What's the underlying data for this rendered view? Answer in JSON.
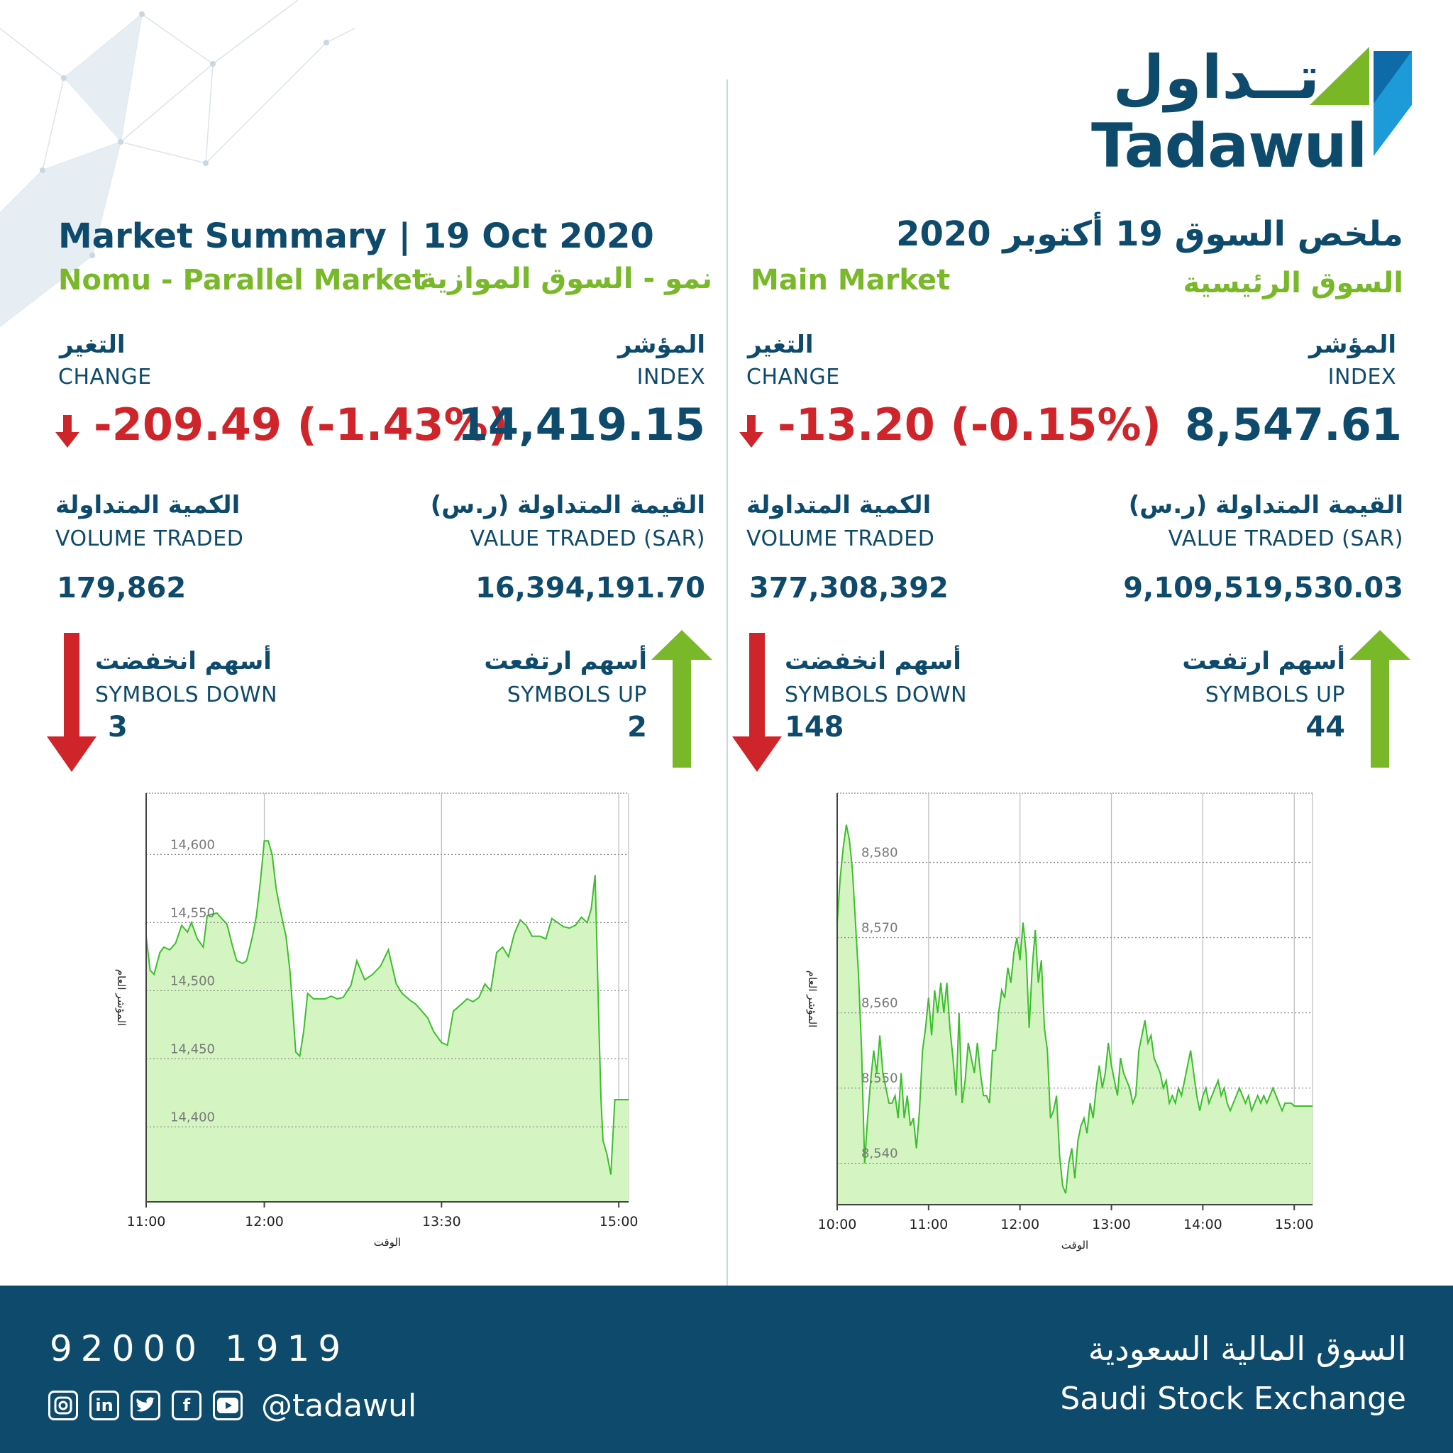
{
  "logo": {
    "arabic": "تــداول",
    "english": "Tadawul"
  },
  "nomu": {
    "title": "Market Summary | 19 Oct 2020",
    "market_en": "Nomu - Parallel Market",
    "market_ar": "نمو - السوق الموازية",
    "index": {
      "label_ar": "المؤشر",
      "label_en": "INDEX",
      "value": "14,419.15"
    },
    "change": {
      "label_ar": "التغير",
      "label_en": "CHANGE",
      "value": "-209.49 (-1.43%)"
    },
    "value_traded": {
      "label_ar": "القيمة المتداولة (ر.س)",
      "label_en": "VALUE TRADED (SAR)",
      "value": "16,394,191.70"
    },
    "volume_traded": {
      "label_ar": "الكمية المتداولة",
      "label_en": "VOLUME TRADED",
      "value": "179,862"
    },
    "symbols_up": {
      "label_ar": "أسهم ارتفعت",
      "label_en": "SYMBOLS UP",
      "value": "2"
    },
    "symbols_down": {
      "label_ar": "أسهم انخفضت",
      "label_en": "SYMBOLS DOWN",
      "value": "3"
    }
  },
  "main": {
    "title": "ملخص السوق 19 أكتوبر 2020",
    "market_en": "Main Market",
    "market_ar": "السوق الرئيسية",
    "index": {
      "label_ar": "المؤشر",
      "label_en": "INDEX",
      "value": "8,547.61"
    },
    "change": {
      "label_ar": "التغير",
      "label_en": "CHANGE",
      "value": "-13.20 (-0.15%)"
    },
    "value_traded": {
      "label_ar": "القيمة المتداولة (ر.س)",
      "label_en": "VALUE TRADED (SAR)",
      "value": "9,109,519,530.03"
    },
    "volume_traded": {
      "label_ar": "الكمية المتداولة",
      "label_en": "VOLUME TRADED",
      "value": "377,308,392"
    },
    "symbols_up": {
      "label_ar": "أسهم ارتفعت",
      "label_en": "SYMBOLS UP",
      "value": "44"
    },
    "symbols_down": {
      "label_ar": "أسهم انخفضت",
      "label_en": "SYMBOLS DOWN",
      "value": "148"
    }
  },
  "footer": {
    "phone": "92000 1919",
    "handle": "@tadawul",
    "exchange_ar": "السوق المالية السعودية",
    "exchange_en": "Saudi Stock Exchange",
    "social_icons": [
      "instagram-icon",
      "linkedin-icon",
      "twitter-icon",
      "facebook-icon",
      "youtube-icon"
    ]
  },
  "colors": {
    "navy": "#0d4a6b",
    "green": "#78b829",
    "red": "#d0242b",
    "chart_fill": "#d4f5c2",
    "chart_line": "#3bbf2b"
  },
  "chart_data": [
    {
      "type": "area",
      "market": "Nomu - Parallel Market",
      "xlabel": "الوقت",
      "ylabel": "المؤشر العام",
      "x_ticks": [
        "11:00",
        "12:00",
        "13:30",
        "15:00"
      ],
      "x_tick_minutes": [
        660,
        720,
        810,
        900
      ],
      "xlim_minutes": [
        660,
        905
      ],
      "y_ticks": [
        "14,400",
        "14,450",
        "14,500",
        "14,550",
        "14,600"
      ],
      "y_tick_values": [
        14400,
        14450,
        14500,
        14550,
        14600
      ],
      "ylim": [
        14345,
        14645
      ],
      "x_minutes": [
        660,
        662,
        664,
        667,
        669,
        672,
        675,
        678,
        681,
        683,
        686,
        689,
        691,
        693,
        696,
        699,
        701,
        704,
        706,
        709,
        711,
        714,
        716,
        718,
        720,
        722,
        724,
        726,
        728,
        731,
        733,
        736,
        738,
        740,
        742,
        745,
        748,
        751,
        754,
        757,
        760,
        764,
        767,
        771,
        775,
        779,
        783,
        787,
        790,
        794,
        797,
        800,
        803,
        806,
        810,
        813,
        816,
        820,
        823,
        826,
        829,
        832,
        835,
        838,
        841,
        844,
        847,
        850,
        853,
        856,
        860,
        863,
        866,
        869,
        872,
        875,
        878,
        881,
        884,
        886,
        888,
        890,
        891,
        892,
        894,
        896,
        898,
        900,
        905
      ],
      "values": [
        14540,
        14515,
        14512,
        14528,
        14532,
        14530,
        14535,
        14548,
        14543,
        14550,
        14538,
        14532,
        14555,
        14556,
        14557,
        14552,
        14549,
        14532,
        14522,
        14520,
        14522,
        14540,
        14555,
        14580,
        14610,
        14610,
        14600,
        14575,
        14560,
        14540,
        14515,
        14455,
        14452,
        14470,
        14498,
        14494,
        14494,
        14494,
        14496,
        14494,
        14495,
        14504,
        14522,
        14508,
        14512,
        14518,
        14530,
        14505,
        14498,
        14493,
        14490,
        14485,
        14480,
        14470,
        14462,
        14460,
        14485,
        14490,
        14494,
        14492,
        14495,
        14505,
        14500,
        14528,
        14532,
        14525,
        14542,
        14552,
        14548,
        14540,
        14540,
        14538,
        14553,
        14550,
        14547,
        14546,
        14548,
        14554,
        14550,
        14560,
        14585,
        14470,
        14420,
        14390,
        14380,
        14365,
        14420,
        14420,
        14420
      ]
    },
    {
      "type": "area",
      "market": "Main Market",
      "xlabel": "الوقت",
      "ylabel": "المؤشر العام",
      "x_ticks": [
        "10:00",
        "11:00",
        "12:00",
        "13:00",
        "14:00",
        "15:00"
      ],
      "x_tick_minutes": [
        600,
        660,
        720,
        780,
        840,
        900
      ],
      "xlim_minutes": [
        600,
        912
      ],
      "y_ticks": [
        "8,540",
        "8,550",
        "8,560",
        "8,570",
        "8,580"
      ],
      "y_tick_values": [
        8540,
        8550,
        8560,
        8570,
        8580
      ],
      "ylim": [
        8534.5,
        8589.2
      ],
      "x_minutes": [
        600,
        602,
        604,
        606,
        608,
        610,
        612,
        614,
        616,
        618,
        620,
        622,
        624,
        626,
        628,
        630,
        632,
        634,
        636,
        638,
        640,
        642,
        644,
        646,
        648,
        650,
        652,
        654,
        656,
        658,
        660,
        662,
        664,
        666,
        668,
        670,
        672,
        674,
        676,
        678,
        680,
        682,
        684,
        686,
        688,
        690,
        692,
        694,
        696,
        698,
        700,
        702,
        704,
        706,
        708,
        710,
        712,
        714,
        716,
        718,
        720,
        722,
        724,
        726,
        728,
        730,
        732,
        734,
        736,
        738,
        740,
        742,
        744,
        746,
        748,
        750,
        752,
        754,
        756,
        758,
        760,
        762,
        764,
        766,
        768,
        770,
        772,
        774,
        776,
        778,
        780,
        782,
        784,
        786,
        788,
        790,
        792,
        794,
        796,
        798,
        800,
        802,
        804,
        806,
        808,
        810,
        812,
        814,
        816,
        818,
        820,
        822,
        824,
        826,
        828,
        830,
        832,
        834,
        836,
        838,
        840,
        842,
        844,
        846,
        848,
        850,
        852,
        854,
        856,
        858,
        860,
        862,
        864,
        866,
        868,
        870,
        872,
        874,
        876,
        878,
        880,
        882,
        884,
        886,
        888,
        890,
        892,
        894,
        896,
        898,
        900,
        902,
        904,
        906,
        908,
        910,
        912
      ],
      "values": [
        8572,
        8578,
        8582,
        8585,
        8583,
        8579,
        8572,
        8565,
        8555,
        8540,
        8546,
        8551,
        8555,
        8552,
        8557,
        8552,
        8550,
        8548,
        8548,
        8549,
        8546,
        8552,
        8546,
        8549,
        8545,
        8546,
        8542,
        8547,
        8555,
        8558,
        8562,
        8557,
        8563,
        8560,
        8564,
        8560,
        8564,
        8558,
        8554,
        8549,
        8560,
        8548,
        8551,
        8556,
        8554,
        8552,
        8556,
        8552,
        8549,
        8549,
        8548,
        8555,
        8555,
        8560,
        8563,
        8562,
        8566,
        8564,
        8568,
        8570,
        8567,
        8572,
        8568,
        8558,
        8566,
        8571,
        8564,
        8567,
        8558,
        8555,
        8546,
        8547,
        8549,
        8541,
        8537,
        8536,
        8540,
        8542,
        8538,
        8543,
        8545,
        8546,
        8544,
        8548,
        8546,
        8550,
        8553,
        8550,
        8552,
        8556,
        8553,
        8551,
        8549,
        8554,
        8552,
        8551,
        8550,
        8548,
        8549,
        8555,
        8557,
        8559,
        8556,
        8557,
        8554,
        8553,
        8552,
        8550,
        8551,
        8548,
        8549,
        8548,
        8550,
        8549,
        8551,
        8553,
        8555,
        8552,
        8549,
        8547,
        8549,
        8550,
        8548,
        8549,
        8550,
        8551,
        8549,
        8550,
        8548,
        8547,
        8548,
        8549,
        8550,
        8549,
        8548,
        8549,
        8547,
        8548,
        8549,
        8548,
        8549,
        8548,
        8549,
        8550,
        8549,
        8548,
        8547,
        8548,
        8548,
        8548,
        8547.61,
        8547.61,
        8547.61,
        8547.61,
        8547.61,
        8547.61,
        8547.61
      ]
    }
  ]
}
